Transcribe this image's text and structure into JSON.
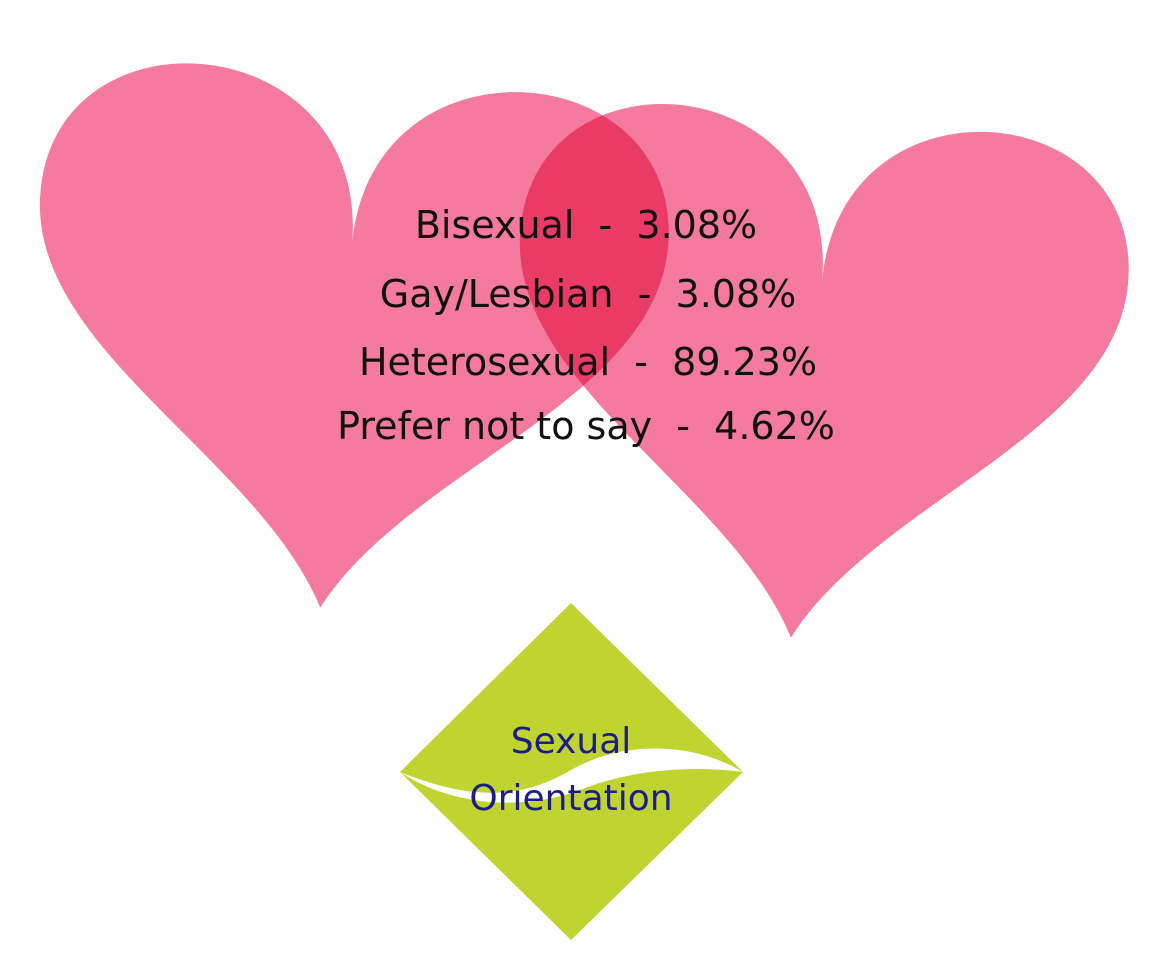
{
  "stats": {
    "lines": [
      "Bisexual  -  3.08%",
      "Gay/Lesbian  -  3.08%",
      "Heterosexual  -  89.23%",
      "Prefer not to say  -  4.62%"
    ]
  },
  "badge": {
    "lines": [
      "Sexual",
      "Orientation"
    ]
  }
}
